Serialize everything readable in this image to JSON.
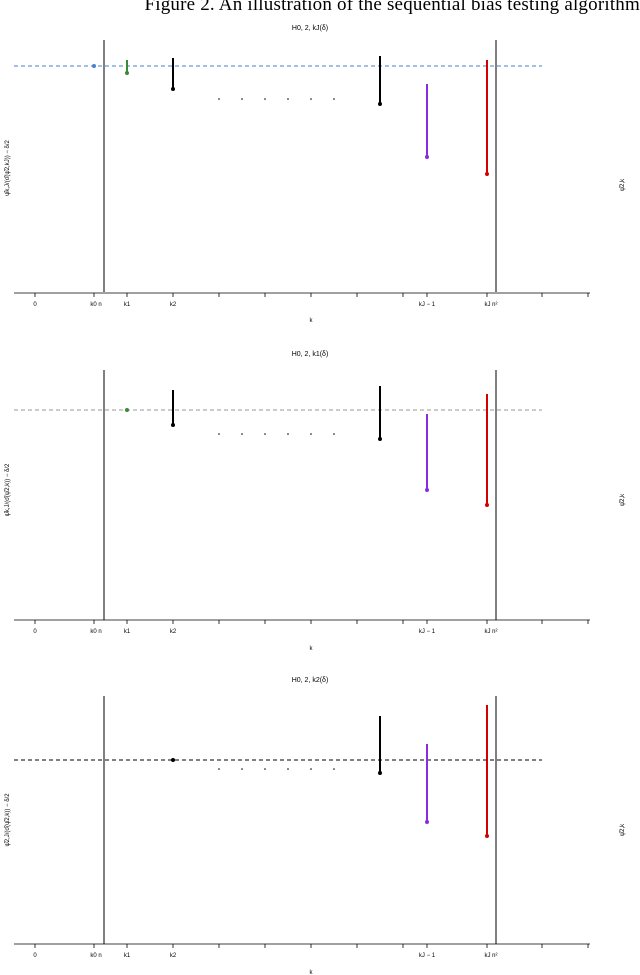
{
  "caption": "Figure 2. An illustration of the sequential bias testing algorithm",
  "panels": [
    {
      "title": "H0, 2, kJ(δ)",
      "xlabel": "k",
      "ylabel": "ψ̂k,J/(σ̂(ψ̂2,kJ)) − δ/2",
      "right_label": "ψ̂2,k",
      "ref_color": "#4a7fcf",
      "ticks": [
        "0",
        "k0 n",
        "k1",
        "k2",
        "kJ − 1",
        "kJ n²"
      ]
    },
    {
      "title": "H0, 2, k1(δ)",
      "xlabel": "k",
      "ylabel": "ψ̂k,J/(σ̂(ψ̂2,k)) − δ/2",
      "right_label": "ψ̂2,k",
      "ref_color": "#9a9a9a",
      "ticks": [
        "0",
        "k0 n",
        "k1",
        "k2",
        "kJ − 1",
        "kJ n²"
      ]
    },
    {
      "title": "H0, 2, k2(δ)",
      "xlabel": "k",
      "ylabel": "ψ̂2,J/(σ̂(ψ̂2,k)) − δ/2",
      "right_label": "ψ̂2,k",
      "ref_color": "#000000",
      "ticks": [
        "0",
        "k0 n",
        "k1",
        "k2",
        "kJ − 1",
        "kJ n²"
      ]
    }
  ],
  "chart_data": [
    {
      "type": "line",
      "title": "H0, 2, kJ(δ)",
      "segments": [
        {
          "x": "k0",
          "color": "#4a7fcf",
          "dot": true
        },
        {
          "x": "k1",
          "color": "#3a8a3a"
        },
        {
          "x": "k2",
          "color": "#000000"
        },
        {
          "x": "kJ-2",
          "color": "#000000"
        },
        {
          "x": "kJ-1",
          "color": "#8a2be2"
        },
        {
          "x": "kJ",
          "color": "#d40000"
        }
      ]
    },
    {
      "type": "line",
      "title": "H0, 2, k1(δ)",
      "segments": [
        {
          "x": "k1",
          "color": "#3a8a3a",
          "dot": true
        },
        {
          "x": "k2",
          "color": "#000000"
        },
        {
          "x": "kJ-2",
          "color": "#000000"
        },
        {
          "x": "kJ-1",
          "color": "#8a2be2"
        },
        {
          "x": "kJ",
          "color": "#d40000"
        }
      ]
    },
    {
      "type": "line",
      "title": "H0, 2, k2(δ)",
      "segments": [
        {
          "x": "k2",
          "color": "#000000",
          "dot": true
        },
        {
          "x": "kJ-2",
          "color": "#000000"
        },
        {
          "x": "kJ-1",
          "color": "#8a2be2"
        },
        {
          "x": "kJ",
          "color": "#d40000"
        }
      ]
    }
  ]
}
